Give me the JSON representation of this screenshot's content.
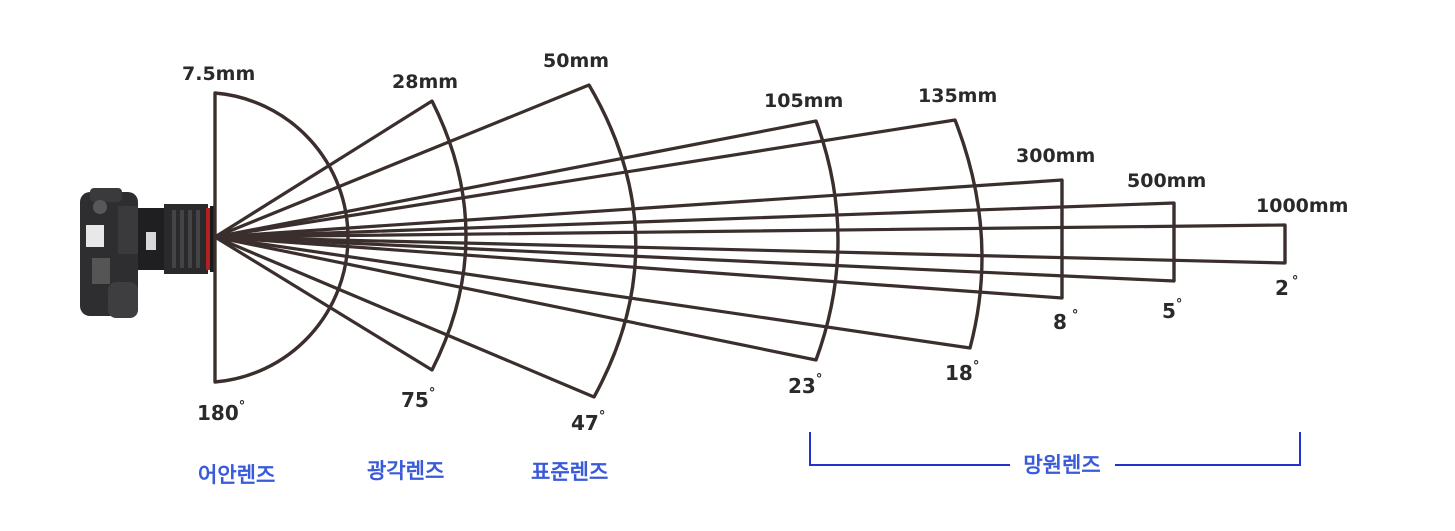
{
  "lenses": [
    {
      "focal": "7.5mm",
      "angle": "180",
      "degree": "°"
    },
    {
      "focal": "28mm",
      "angle": "75",
      "degree": "°"
    },
    {
      "focal": "50mm",
      "angle": "47",
      "degree": "°"
    },
    {
      "focal": "105mm",
      "angle": "23",
      "degree": "°"
    },
    {
      "focal": "135mm",
      "angle": "18",
      "degree": "°"
    },
    {
      "focal": "300mm",
      "angle": "8",
      "degree": "°"
    },
    {
      "focal": "500mm",
      "angle": "5",
      "degree": "°"
    },
    {
      "focal": "1000mm",
      "angle": "2",
      "degree": "°"
    }
  ],
  "categories": {
    "fisheye": "어안렌즈",
    "wide": "광각렌즈",
    "standard": "표준렌즈",
    "telephoto": "망원렌즈"
  },
  "colors": {
    "lines": "#3a2f2c",
    "category_text": "#3a5bd9",
    "bracket": "#2233cc"
  },
  "icons": {
    "camera": "dslr-camera-icon"
  }
}
